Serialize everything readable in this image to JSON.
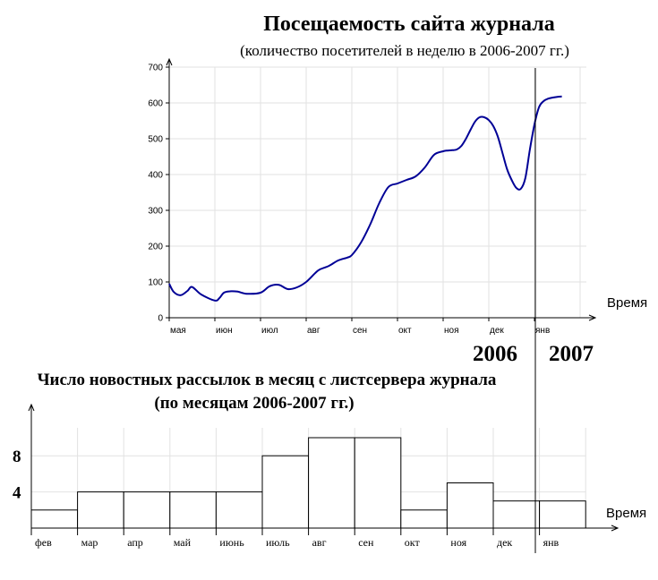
{
  "chart_data": [
    {
      "type": "line",
      "title": "Посещаемость сайта журнала",
      "subtitle": "(количество посетителей в неделю в 2006-2007 гг.)",
      "xlabel": "Время",
      "categories": [
        "мая",
        "июн",
        "июл",
        "авг",
        "сен",
        "окт",
        "ноя",
        "дек",
        "янв"
      ],
      "ylim": [
        0,
        700
      ],
      "yticks": [
        0,
        100,
        200,
        300,
        400,
        500,
        600,
        700
      ],
      "grid": true,
      "series": [
        {
          "color": "#000096",
          "x": [
            0,
            0.1,
            0.25,
            0.4,
            0.5,
            0.7,
            1,
            1.1,
            1.2,
            1.35,
            1.5,
            1.7,
            2,
            2.2,
            2.4,
            2.6,
            2.8,
            3,
            3.2,
            3.3,
            3.5,
            3.7,
            3.9,
            4,
            4.2,
            4.4,
            4.6,
            4.8,
            5,
            5.2,
            5.4,
            5.6,
            5.8,
            6,
            6.1,
            6.2,
            6.3,
            6.4,
            6.5,
            6.6,
            6.7,
            6.8,
            6.9,
            7,
            7.1,
            7.2,
            7.3,
            7.4,
            7.5,
            7.6,
            7.7,
            7.8,
            7.9,
            8,
            8.1,
            8.2,
            8.3,
            8.4,
            8.5,
            8.6
          ],
          "y": [
            95,
            72,
            63,
            75,
            86,
            65,
            48,
            55,
            70,
            74,
            73,
            67,
            70,
            88,
            92,
            80,
            85,
            100,
            125,
            135,
            145,
            160,
            168,
            175,
            210,
            260,
            320,
            365,
            375,
            385,
            395,
            420,
            455,
            465,
            467,
            468,
            470,
            480,
            500,
            525,
            548,
            560,
            560,
            552,
            535,
            505,
            460,
            415,
            385,
            363,
            360,
            390,
            470,
            540,
            588,
            605,
            612,
            615,
            617,
            618
          ]
        }
      ]
    },
    {
      "type": "bar",
      "title": "Число новостных рассылок в месяц с листсервера журнала",
      "subtitle": "(по месяцам 2006-2007 гг.)",
      "xlabel": "Время",
      "categories": [
        "фев",
        "мар",
        "апр",
        "май",
        "июнь",
        "июль",
        "авг",
        "сен",
        "окт",
        "ноя",
        "дек",
        "янв"
      ],
      "values": [
        2,
        4,
        4,
        4,
        4,
        8,
        10,
        10,
        2,
        5,
        3,
        3
      ],
      "yticks": [
        4,
        8
      ],
      "grid": true
    }
  ],
  "annotations": {
    "year_left": "2006",
    "year_right": "2007"
  }
}
